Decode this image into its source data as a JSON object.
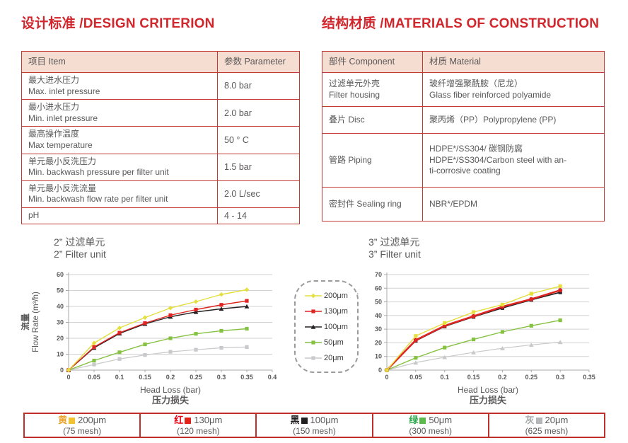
{
  "colors": {
    "accent_red": "#d0262c",
    "table_border_red": "#c23b33",
    "table_header_bg": "#f6ddd2",
    "body_text": "#595757",
    "gridline": "#d2d2d2",
    "axis": "#a8a8a8"
  },
  "titles": {
    "design": "设计标准 /DESIGN CRITERION",
    "materials": "结构材质 /MATERIALS OF CONSTRUCTION"
  },
  "design_table": {
    "headers": [
      "项目 Item",
      "参数 Parameter"
    ],
    "rows": [
      {
        "item": "最大进水压力\nMax. inlet pressure",
        "value": "8.0 bar"
      },
      {
        "item": "最小进水压力\nMin. inlet pressure",
        "value": "2.0 bar"
      },
      {
        "item": "最高操作温度\nMax temperature",
        "value": "50 ° C"
      },
      {
        "item": "单元最小反洗压力\nMin. backwash pressure per filter unit",
        "value": "1.5 bar"
      },
      {
        "item": "单元最小反洗流量\nMin. backwash flow rate per filter unit",
        "value": "2.0 L/sec"
      },
      {
        "item": "pH",
        "value": "4 - 14"
      }
    ]
  },
  "materials_table": {
    "headers": [
      "部件 Component",
      "材质 Material"
    ],
    "rows": [
      {
        "component": "过滤单元外壳\nFilter housing",
        "material": "玻纤增强聚酰胺（尼龙）\nGlass fiber reinforced polyamide"
      },
      {
        "component": "叠片 Disc",
        "material": "聚丙烯（PP）Polypropylene (PP)"
      },
      {
        "component": "管路 Piping",
        "material": "HDPE*/SS304/ 碳钢防腐\nHDPE*/SS304/Carbon steel with an-\nti-corrosive coating"
      },
      {
        "component": "密封件 Sealing ring",
        "material": "NBR*/EPDM"
      }
    ]
  },
  "chart_data": [
    {
      "type": "line",
      "title": "2” 过滤单元\n2” Filter unit",
      "xlabel_en": "Head Loss (bar)",
      "xlabel_zh": "压力损失",
      "ylabel_zh": "流量",
      "ylabel_en": "Flow Rate (m³/h)",
      "xlim": [
        0,
        0.4
      ],
      "ylim": [
        0,
        60
      ],
      "xticks": [
        "0",
        "0.05",
        "0.1",
        "0.15",
        "0.2",
        "0.25",
        "0.3",
        "0.35",
        "0.4"
      ],
      "xtick_values": [
        0,
        0.05,
        0.1,
        0.15,
        0.2,
        0.25,
        0.3,
        0.35,
        0.4
      ],
      "yticks": [
        0,
        10,
        20,
        30,
        40,
        50,
        60
      ],
      "x": [
        0,
        0.05,
        0.1,
        0.15,
        0.2,
        0.25,
        0.3,
        0.35
      ],
      "grid": "horizontal",
      "series": [
        {
          "name": "200μm",
          "color": "#e4df3e",
          "marker": "diamond",
          "width": 1.4,
          "values": [
            0,
            17,
            26.5,
            33,
            39,
            43,
            47.5,
            50.5
          ]
        },
        {
          "name": "130μm",
          "color": "#e02421",
          "marker": "square",
          "width": 1.4,
          "values": [
            0,
            14.5,
            23.5,
            29.5,
            34.5,
            38,
            41,
            43.5
          ]
        },
        {
          "name": "100μm",
          "color": "#262223",
          "marker": "triangle",
          "width": 1.4,
          "values": [
            0,
            14,
            23,
            29,
            33.5,
            36.5,
            38.5,
            40
          ]
        },
        {
          "name": "50μm",
          "color": "#85c241",
          "marker": "square",
          "width": 1.4,
          "values": [
            0,
            6,
            11.2,
            16.2,
            20,
            22.8,
            24.7,
            26
          ]
        },
        {
          "name": "20μm",
          "color": "#c8c9cb",
          "marker": "square",
          "width": 1.2,
          "values": [
            0,
            3.5,
            7,
            9.5,
            11.5,
            12.8,
            14,
            14.5
          ]
        }
      ]
    },
    {
      "type": "line",
      "title": "3” 过滤单元\n3” Filter unit",
      "xlabel_en": "Head Loss (bar)",
      "xlabel_zh": "压力损失",
      "ylabel_zh": "流量",
      "ylabel_en": "Flow Rate (m³/h)",
      "xlim": [
        0,
        0.35
      ],
      "ylim": [
        0,
        70
      ],
      "xticks": [
        "0",
        "0.05",
        "0.1",
        "0.15",
        "0.2",
        "0.25",
        "0.3",
        "0.35"
      ],
      "xtick_values": [
        0,
        0.05,
        0.1,
        0.15,
        0.2,
        0.25,
        0.3,
        0.35
      ],
      "yticks": [
        0,
        10,
        20,
        30,
        40,
        50,
        60,
        70
      ],
      "x": [
        0,
        0.05,
        0.1,
        0.15,
        0.2,
        0.25,
        0.3
      ],
      "grid": "horizontal",
      "series": [
        {
          "name": "200μm",
          "color": "#e4df3e",
          "marker": "square",
          "width": 1.4,
          "values": [
            0,
            25,
            34.5,
            42.5,
            48,
            56,
            61.5
          ]
        },
        {
          "name": "130μm",
          "color": "#e02421",
          "marker": "circle",
          "width": 2.5,
          "values": [
            0,
            22,
            32.5,
            39.5,
            46.5,
            52,
            58.5
          ]
        },
        {
          "name": "100μm",
          "color": "#262223",
          "marker": "square",
          "width": 1.6,
          "values": [
            0,
            21.5,
            32,
            39,
            45.5,
            51.5,
            57
          ]
        },
        {
          "name": "50μm",
          "color": "#85c241",
          "marker": "square",
          "width": 1.4,
          "values": [
            0,
            9,
            16.5,
            22.5,
            28,
            32.5,
            36.5
          ]
        },
        {
          "name": "20μm",
          "color": "#c8c9cb",
          "marker": "triangle",
          "width": 1.2,
          "values": [
            0,
            5.5,
            9.5,
            13,
            16,
            18.5,
            20.5
          ]
        }
      ]
    }
  ],
  "legend": {
    "items": [
      {
        "label": "200μm",
        "color": "#e4df3e",
        "marker": "diamond"
      },
      {
        "label": "130μm",
        "color": "#e02421",
        "marker": "square"
      },
      {
        "label": "100μm",
        "color": "#262223",
        "marker": "triangle"
      },
      {
        "label": "50μm",
        "color": "#85c241",
        "marker": "square"
      },
      {
        "label": "20μm",
        "color": "#c8c9cb",
        "marker": "square"
      }
    ]
  },
  "bottom_legend": {
    "items": [
      {
        "color_zh": "黄",
        "char_color": "#eaa431",
        "swatch_color": "#f2c230",
        "size": "200μm",
        "mesh": "(75 mesh)"
      },
      {
        "color_zh": "红",
        "char_color": "#e60012",
        "swatch_color": "#e2231a",
        "size": "130μm",
        "mesh": "(120 mesh)"
      },
      {
        "color_zh": "黑",
        "char_color": "#231f20",
        "swatch_color": "#231f20",
        "size": "100μm",
        "mesh": "(150 mesh)"
      },
      {
        "color_zh": "绿",
        "char_color": "#2fa84c",
        "swatch_color": "#5cb94b",
        "size": "50μm",
        "mesh": "(300 mesh)"
      },
      {
        "color_zh": "灰",
        "char_color": "#a7a9ab",
        "swatch_color": "#b5b6b8",
        "size": "20μm",
        "mesh": "(625 mesh)"
      }
    ]
  }
}
